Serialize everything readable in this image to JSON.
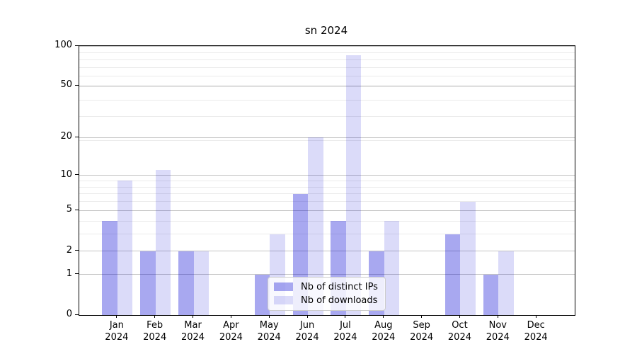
{
  "title": "sn 2024",
  "legend": {
    "items": [
      {
        "label": "Nb of distinct IPs"
      },
      {
        "label": "Nb of downloads"
      }
    ]
  },
  "chart_data": {
    "type": "bar",
    "title": "sn 2024",
    "categories": [
      "Jan",
      "Feb",
      "Mar",
      "Apr",
      "May",
      "Jun",
      "Jul",
      "Aug",
      "Sep",
      "Oct",
      "Nov",
      "Dec"
    ],
    "category_sublabel": "2024",
    "series": [
      {
        "name": "Nb of distinct IPs",
        "color": "rgba(0,0,210,0.34)",
        "values": [
          4,
          2,
          2,
          0,
          1,
          7,
          4,
          2,
          0,
          3,
          1,
          0
        ]
      },
      {
        "name": "Nb of downloads",
        "color": "rgba(0,0,210,0.14)",
        "values": [
          9,
          11,
          2,
          0,
          3,
          20,
          85,
          4,
          0,
          6,
          2,
          0
        ]
      }
    ],
    "xlabel": "",
    "ylabel": "",
    "y_scale": "log1p",
    "y_ticks": [
      0,
      1,
      2,
      5,
      10,
      20,
      50,
      100
    ],
    "y_minor_gridlines_at_1p": [
      4,
      5,
      7,
      8,
      9,
      10,
      20,
      30,
      40,
      50,
      60,
      70,
      80,
      90,
      100
    ],
    "ylim": [
      0,
      100
    ],
    "grid": {
      "major_color": "#c3c3c3",
      "minor_color": "#ebebeb"
    },
    "legend_position": "lower center"
  }
}
